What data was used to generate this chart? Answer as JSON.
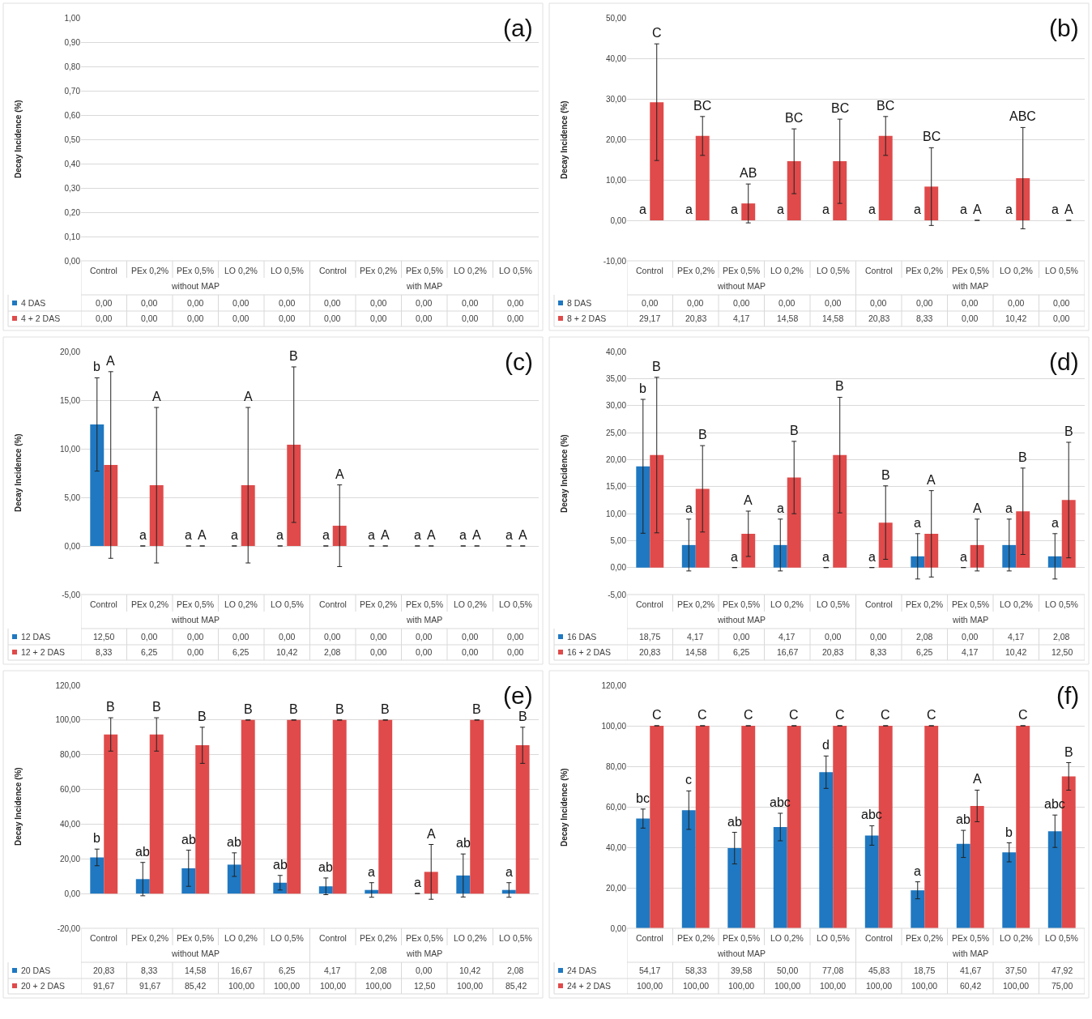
{
  "chart_data": [
    {
      "type": "bar",
      "title": "(a)",
      "ylabel": "Decay Incidence (%)",
      "categories": [
        "Control",
        "PEx 0,2%",
        "PEx 0,5%",
        "LO 0,2%",
        "LO 0,5%",
        "Control",
        "PEx 0,2%",
        "PEx 0,5%",
        "LO 0,2%",
        "LO 0,5%"
      ],
      "series": [
        {
          "name": "4 DAS",
          "color": "#1f78c1",
          "values": [
            0,
            0,
            0,
            0,
            0,
            0,
            0,
            0,
            0,
            0
          ],
          "value_labels": [
            "0,00",
            "0,00",
            "0,00",
            "0,00",
            "0,00",
            "0,00",
            "0,00",
            "0,00",
            "0,00",
            "0,00"
          ]
        },
        {
          "name": "4 + 2 DAS",
          "color": "#e04a4a",
          "values": [
            0,
            0,
            0,
            0,
            0,
            0,
            0,
            0,
            0,
            0
          ],
          "value_labels": [
            "0,00",
            "0,00",
            "0,00",
            "0,00",
            "0,00",
            "0,00",
            "0,00",
            "0,00",
            "0,00",
            "0,00"
          ]
        }
      ],
      "ylim": [
        0,
        1
      ],
      "yticks": [
        {
          "value": 0,
          "label": "0,00"
        },
        {
          "value": 0.1,
          "label": "0,10"
        },
        {
          "value": 0.2,
          "label": "0,20"
        },
        {
          "value": 0.3,
          "label": "0,30"
        },
        {
          "value": 0.4,
          "label": "0,40"
        },
        {
          "value": 0.5,
          "label": "0,50"
        },
        {
          "value": 0.6,
          "label": "0,60"
        },
        {
          "value": 0.7,
          "label": "0,70"
        },
        {
          "value": 0.8,
          "label": "0,80"
        },
        {
          "value": 0.9,
          "label": "0,90"
        },
        {
          "value": 1.0,
          "label": "1,00"
        }
      ],
      "annotations": [
        "without MAP",
        "with MAP"
      ],
      "grid": "y",
      "legend": "bottom"
    },
    {
      "type": "bar",
      "title": "(b)",
      "ylabel": "Decay Incidence (%)",
      "categories": [
        "Control",
        "PEx 0,2%",
        "PEx 0,5%",
        "LO 0,2%",
        "LO 0,5%",
        "Control",
        "PEx 0,2%",
        "PEx 0,5%",
        "LO 0,2%",
        "LO 0,5%"
      ],
      "series": [
        {
          "name": "8 DAS",
          "color": "#1f78c1",
          "values": [
            0,
            0,
            0,
            0,
            0,
            0,
            0,
            0,
            0,
            0
          ],
          "value_labels": [
            "0,00",
            "0,00",
            "0,00",
            "0,00",
            "0,00",
            "0,00",
            "0,00",
            "0,00",
            "0,00",
            "0,00"
          ]
        },
        {
          "name": "8 + 2 DAS",
          "color": "#e04a4a",
          "values": [
            29.17,
            20.83,
            4.17,
            14.58,
            14.58,
            20.83,
            8.33,
            0,
            10.42,
            0
          ],
          "value_labels": [
            "29,17",
            "20,83",
            "4,17",
            "14,58",
            "14,58",
            "20,83",
            "8,33",
            "0,00",
            "10,42",
            "0,00"
          ],
          "errors": [
            14.4,
            4.8,
            4.8,
            8,
            10.4,
            4.8,
            9.6,
            null,
            12.5,
            null
          ]
        }
      ],
      "ylim": [
        -10,
        50
      ],
      "yticks": [
        {
          "value": -10,
          "label": "-10,00"
        },
        {
          "value": 0,
          "label": "0,00"
        },
        {
          "value": 10,
          "label": "10,00"
        },
        {
          "value": 20,
          "label": "20,00"
        },
        {
          "value": 30,
          "label": "30,00"
        },
        {
          "value": 40,
          "label": "40,00"
        },
        {
          "value": 50,
          "label": "50,00"
        }
      ],
      "annotations": [
        "a",
        "C",
        "a",
        "BC",
        "a",
        "AB",
        "a",
        "BC",
        "a",
        "BC",
        "a",
        "BC",
        "a",
        "BC",
        "a",
        "A",
        "a",
        "ABC",
        "a",
        "A",
        "without MAP",
        "with MAP"
      ],
      "grid": "y",
      "legend": "bottom"
    },
    {
      "type": "bar",
      "title": "(c)",
      "ylabel": "Decay Incidence (%)",
      "categories": [
        "Control",
        "PEx 0,2%",
        "PEx 0,5%",
        "LO 0,2%",
        "LO 0,5%",
        "Control",
        "PEx 0,2%",
        "PEx 0,5%",
        "LO 0,2%",
        "LO 0,5%"
      ],
      "series": [
        {
          "name": "12 DAS",
          "color": "#1f78c1",
          "values": [
            12.5,
            0,
            0,
            0,
            0,
            0,
            0,
            0,
            0,
            0
          ],
          "value_labels": [
            "12,50",
            "0,00",
            "0,00",
            "0,00",
            "0,00",
            "0,00",
            "0,00",
            "0,00",
            "0,00",
            "0,00"
          ],
          "errors": [
            4.8,
            null,
            null,
            null,
            null,
            null,
            null,
            null,
            null,
            null
          ]
        },
        {
          "name": "12 + 2 DAS",
          "color": "#e04a4a",
          "values": [
            8.33,
            6.25,
            0,
            6.25,
            10.42,
            2.08,
            0,
            0,
            0,
            0
          ],
          "value_labels": [
            "8,33",
            "6,25",
            "0,00",
            "6,25",
            "10,42",
            "2,08",
            "0,00",
            "0,00",
            "0,00",
            "0,00"
          ],
          "errors": [
            9.6,
            8,
            null,
            8,
            8,
            4.2,
            null,
            null,
            null,
            null
          ]
        }
      ],
      "ylim": [
        -5,
        20
      ],
      "yticks": [
        {
          "value": -5,
          "label": "-5,00"
        },
        {
          "value": 0,
          "label": "0,00"
        },
        {
          "value": 5,
          "label": "5,00"
        },
        {
          "value": 10,
          "label": "10,00"
        },
        {
          "value": 15,
          "label": "15,00"
        },
        {
          "value": 20,
          "label": "20,00"
        }
      ],
      "annotations": [
        "b",
        "A",
        "a",
        "A",
        "a",
        "A",
        "a",
        "A",
        "a",
        "B",
        "a",
        "A",
        "a",
        "A",
        "a",
        "A",
        "a",
        "A",
        "a",
        "A",
        "without MAP",
        "with MAP"
      ],
      "grid": "y",
      "legend": "bottom"
    },
    {
      "type": "bar",
      "title": "(d)",
      "ylabel": "Decay Incidence (%)",
      "categories": [
        "Control",
        "PEx 0,2%",
        "PEx 0,5%",
        "LO 0,2%",
        "LO 0,5%",
        "Control",
        "PEx 0,2%",
        "PEx 0,5%",
        "LO 0,2%",
        "LO 0,5%"
      ],
      "series": [
        {
          "name": "16 DAS",
          "color": "#1f78c1",
          "values": [
            18.75,
            4.17,
            0,
            4.17,
            0,
            0,
            2.08,
            0,
            4.17,
            2.08
          ],
          "value_labels": [
            "18,75",
            "4,17",
            "0,00",
            "4,17",
            "0,00",
            "0,00",
            "2,08",
            "0,00",
            "4,17",
            "2,08"
          ],
          "errors": [
            12.4,
            4.8,
            null,
            4.8,
            null,
            null,
            4.2,
            null,
            4.8,
            4.2
          ]
        },
        {
          "name": "16 + 2 DAS",
          "color": "#e04a4a",
          "values": [
            20.83,
            14.58,
            6.25,
            16.67,
            20.83,
            8.33,
            6.25,
            4.17,
            10.42,
            12.5
          ],
          "value_labels": [
            "20,83",
            "14,58",
            "6,25",
            "16,67",
            "20,83",
            "8,33",
            "6,25",
            "4,17",
            "10,42",
            "12,50"
          ],
          "errors": [
            14.4,
            8,
            4.2,
            6.7,
            10.7,
            6.8,
            8,
            4.8,
            8,
            10.7
          ]
        }
      ],
      "ylim": [
        -5,
        40
      ],
      "yticks": [
        {
          "value": -5,
          "label": "-5,00"
        },
        {
          "value": 0,
          "label": "0,00"
        },
        {
          "value": 5,
          "label": "5,00"
        },
        {
          "value": 10,
          "label": "10,00"
        },
        {
          "value": 15,
          "label": "15,00"
        },
        {
          "value": 20,
          "label": "20,00"
        },
        {
          "value": 25,
          "label": "25,00"
        },
        {
          "value": 30,
          "label": "30,00"
        },
        {
          "value": 35,
          "label": "35,00"
        },
        {
          "value": 40,
          "label": "40,00"
        }
      ],
      "annotations": [
        "b",
        "B",
        "a",
        "B",
        "a",
        "A",
        "a",
        "B",
        "a",
        "B",
        "a",
        "B",
        "a",
        "A",
        "a",
        "A",
        "a",
        "B",
        "a",
        "B",
        "without MAP",
        "with MAP"
      ],
      "grid": "y",
      "legend": "bottom"
    },
    {
      "type": "bar",
      "title": "(e)",
      "ylabel": "Decay Incidence (%)",
      "categories": [
        "Control",
        "PEx 0,2%",
        "PEx 0,5%",
        "LO 0,2%",
        "LO 0,5%",
        "Control",
        "PEx 0,2%",
        "PEx 0,5%",
        "LO 0,2%",
        "LO 0,5%"
      ],
      "series": [
        {
          "name": "20 DAS",
          "color": "#1f78c1",
          "values": [
            20.83,
            8.33,
            14.58,
            16.67,
            6.25,
            4.17,
            2.08,
            0,
            10.42,
            2.08
          ],
          "value_labels": [
            "20,83",
            "8,33",
            "14,58",
            "16,67",
            "6,25",
            "4,17",
            "2,08",
            "0,00",
            "10,42",
            "2,08"
          ],
          "errors": [
            4.8,
            9.6,
            10.4,
            6.8,
            4.2,
            4.8,
            4.2,
            null,
            12.4,
            4.2
          ]
        },
        {
          "name": "20 + 2 DAS",
          "color": "#e04a4a",
          "values": [
            91.67,
            91.67,
            85.42,
            100,
            100,
            100,
            100,
            12.5,
            100,
            85.42
          ],
          "value_labels": [
            "91,67",
            "91,67",
            "85,42",
            "100,00",
            "100,00",
            "100,00",
            "100,00",
            "12,50",
            "100,00",
            "85,42"
          ],
          "errors": [
            9.6,
            9.6,
            10.4,
            null,
            null,
            null,
            null,
            15.8,
            null,
            10.4
          ]
        }
      ],
      "ylim": [
        -20,
        120
      ],
      "yticks": [
        {
          "value": -20,
          "label": "-20,00"
        },
        {
          "value": 0,
          "label": "0,00"
        },
        {
          "value": 20,
          "label": "20,00"
        },
        {
          "value": 40,
          "label": "40,00"
        },
        {
          "value": 60,
          "label": "60,00"
        },
        {
          "value": 80,
          "label": "80,00"
        },
        {
          "value": 100,
          "label": "100,00"
        },
        {
          "value": 120,
          "label": "120,00"
        }
      ],
      "annotations": [
        "b",
        "B",
        "ab",
        "B",
        "ab",
        "B",
        "ab",
        "B",
        "ab",
        "B",
        "ab",
        "B",
        "a",
        "B",
        "a",
        "A",
        "ab",
        "B",
        "a",
        "B",
        "without MAP",
        "with MAP"
      ],
      "grid": "y",
      "legend": "bottom"
    },
    {
      "type": "bar",
      "title": "(f)",
      "ylabel": "Decay Incidence (%)",
      "categories": [
        "Control",
        "PEx 0,2%",
        "PEx 0,5%",
        "LO 0,2%",
        "LO 0,5%",
        "Control",
        "PEx 0,2%",
        "PEx 0,5%",
        "LO 0,2%",
        "LO 0,5%"
      ],
      "series": [
        {
          "name": "24 DAS",
          "color": "#1f78c1",
          "values": [
            54.17,
            58.33,
            39.58,
            50,
            77.08,
            45.83,
            18.75,
            41.67,
            37.5,
            47.92
          ],
          "value_labels": [
            "54,17",
            "58,33",
            "39,58",
            "50,00",
            "77,08",
            "45,83",
            "18,75",
            "41,67",
            "37,50",
            "47,92"
          ],
          "errors": [
            4.7,
            9.5,
            7.8,
            6.8,
            8,
            4.8,
            4.2,
            6.7,
            4.7,
            8
          ]
        },
        {
          "name": "24 + 2 DAS",
          "color": "#e04a4a",
          "values": [
            100,
            100,
            100,
            100,
            100,
            100,
            100,
            60.42,
            100,
            75
          ],
          "value_labels": [
            "100,00",
            "100,00",
            "100,00",
            "100,00",
            "100,00",
            "100,00",
            "100,00",
            "60,42",
            "100,00",
            "75,00"
          ],
          "errors": [
            null,
            null,
            null,
            null,
            null,
            null,
            null,
            7.8,
            null,
            6.8
          ]
        }
      ],
      "ylim": [
        0,
        120
      ],
      "yticks": [
        {
          "value": 0,
          "label": "0,00"
        },
        {
          "value": 20,
          "label": "20,00"
        },
        {
          "value": 40,
          "label": "40,00"
        },
        {
          "value": 60,
          "label": "60,00"
        },
        {
          "value": 80,
          "label": "80,00"
        },
        {
          "value": 100,
          "label": "100,00"
        },
        {
          "value": 120,
          "label": "120,00"
        }
      ],
      "annotations": [
        "bc",
        "C",
        "c",
        "C",
        "ab",
        "C",
        "abc",
        "C",
        "d",
        "C",
        "abc",
        "C",
        "a",
        "C",
        "ab",
        "A",
        "b",
        "C",
        "abc",
        "B",
        "without MAP",
        "with MAP"
      ],
      "grid": "y",
      "legend": "bottom"
    }
  ]
}
